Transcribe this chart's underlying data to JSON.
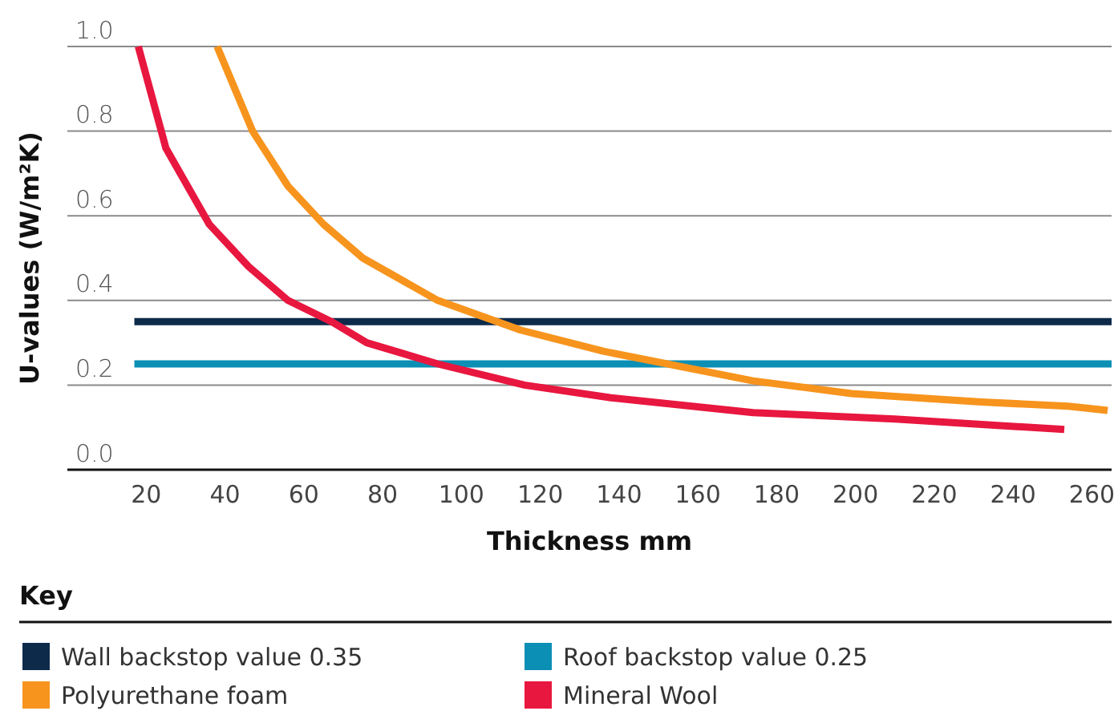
{
  "chart_data": {
    "type": "line",
    "xlabel": "Thickness mm",
    "ylabel": "U-values (W/m²K)",
    "legend_title": "Key",
    "xlim": [
      0,
      265
    ],
    "xticks": [
      20,
      40,
      60,
      80,
      100,
      120,
      140,
      160,
      180,
      200,
      220,
      240,
      260
    ],
    "ylim": [
      0,
      1
    ],
    "yticks": [
      {
        "value": 0,
        "label": "0.0"
      },
      {
        "value": 0.2,
        "label": "0.2"
      },
      {
        "value": 0.4,
        "label": "0.4"
      },
      {
        "value": 0.6,
        "label": "0.6"
      },
      {
        "value": 0.8,
        "label": "0.8"
      },
      {
        "value": 1,
        "label": "1.0"
      }
    ],
    "grid": "y",
    "legend": "bottom",
    "marker": "none",
    "line_style": "solid",
    "series": [
      {
        "name": "Wall backstop value 0.35",
        "color": "#0d2a4a",
        "x": [
          17,
          265
        ],
        "values": [
          0.35,
          0.35
        ]
      },
      {
        "name": "Roof backstop value 0.25",
        "color": "#0b8fb5",
        "x": [
          17,
          265
        ],
        "values": [
          0.25,
          0.25
        ]
      },
      {
        "name": "Polyurethane foam",
        "color": "#f7941d",
        "x": [
          38,
          47,
          56,
          65,
          75,
          94,
          115,
          136,
          174,
          199,
          232,
          254,
          264
        ],
        "values": [
          1.0,
          0.8,
          0.67,
          0.58,
          0.5,
          0.4,
          0.33,
          0.28,
          0.21,
          0.18,
          0.16,
          0.15,
          0.14
        ]
      },
      {
        "name": "Mineral Wool",
        "color": "#e8173f",
        "x": [
          18,
          25,
          36,
          46,
          56,
          67,
          76,
          94,
          116,
          138,
          174,
          210,
          253
        ],
        "values": [
          1.0,
          0.76,
          0.58,
          0.48,
          0.4,
          0.35,
          0.3,
          0.25,
          0.2,
          0.17,
          0.135,
          0.12,
          0.095
        ]
      }
    ]
  }
}
